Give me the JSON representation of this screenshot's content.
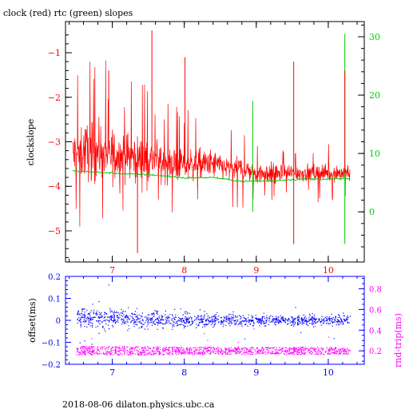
{
  "header": {
    "title": "clock (red) rtc (green) slopes"
  },
  "footer": {
    "text": "2018-08-06 dilaton.physics.ubc.ca"
  },
  "colors": {
    "red": "#ff0000",
    "green": "#00cc00",
    "blue": "#0000ff",
    "magenta": "#ff00ff",
    "axis": "#000000"
  },
  "chart_data": [
    {
      "type": "line",
      "title": "clock (red) rtc (green) slopes",
      "xlabel": "",
      "ylabel": "clockslope",
      "y2label": "",
      "xlim": [
        6.35,
        10.5
      ],
      "ylim": [
        -5.7,
        -0.3
      ],
      "y2lim": [
        -8.6,
        32.6
      ],
      "xticks": [
        "7",
        "8",
        "9",
        "10"
      ],
      "yticks": [
        "-1",
        "-2",
        "-3",
        "-4",
        "-5"
      ],
      "y2ticks": [
        "30",
        "20",
        "10",
        "0"
      ],
      "grid": false,
      "series": [
        {
          "name": "clock",
          "color": "#ff0000",
          "axis": "left",
          "x": [
            6.45,
            6.6,
            6.8,
            7.0,
            7.2,
            7.4,
            7.6,
            7.8,
            8.0,
            8.2,
            8.4,
            8.6,
            8.8,
            9.0,
            9.2,
            9.4,
            9.6,
            9.8,
            10.0,
            10.2,
            10.3
          ],
          "y": [
            -3.3,
            -3.2,
            -3.2,
            -3.3,
            -3.3,
            -3.4,
            -3.4,
            -3.5,
            -3.5,
            -3.5,
            -3.5,
            -3.6,
            -3.6,
            -3.7,
            -3.7,
            -3.7,
            -3.7,
            -3.7,
            -3.7,
            -3.7,
            -3.7
          ],
          "spread": [
            0.9,
            1.0,
            1.0,
            0.9,
            0.8,
            0.8,
            0.7,
            0.6,
            0.6,
            0.5,
            0.5,
            0.4,
            0.4,
            0.4,
            0.35,
            0.35,
            0.3,
            0.3,
            0.3,
            0.3,
            0.3
          ]
        },
        {
          "name": "rtc",
          "color": "#00cc00",
          "axis": "right",
          "x": [
            6.45,
            6.8,
            7.2,
            7.6,
            8.0,
            8.4,
            8.8,
            9.2,
            9.6,
            10.0,
            10.3
          ],
          "y": [
            7.0,
            6.8,
            6.5,
            6.3,
            5.8,
            5.9,
            5.2,
            5.3,
            5.6,
            5.6,
            5.7
          ]
        }
      ],
      "spikes": [
        {
          "x": 7.55,
          "y": -0.5
        },
        {
          "x": 7.35,
          "y": -5.5
        },
        {
          "x": 8.01,
          "y": -1.1
        },
        {
          "x": 9.52,
          "y": -1.2
        },
        {
          "x": 9.52,
          "y": -5.3
        },
        {
          "x": 10.23,
          "y": -1.4
        },
        {
          "x": 6.95,
          "y": -1.4
        }
      ],
      "green_spikes": [
        {
          "x": 8.95,
          "y": 19.0
        },
        {
          "x": 8.95,
          "y": 0.0
        },
        {
          "x": 10.23,
          "y": 30.5
        },
        {
          "x": 10.23,
          "y": -5.5
        }
      ]
    },
    {
      "type": "scatter",
      "title": "",
      "xlabel": "",
      "ylabel": "offset(ms)",
      "y2label": "rnd-trip(ms)",
      "xlim": [
        6.35,
        10.5
      ],
      "ylim": [
        -0.2,
        0.2
      ],
      "y2lim": [
        0.07,
        0.92
      ],
      "xticks": [
        "7",
        "8",
        "9",
        "10"
      ],
      "yticks": [
        "0.2",
        "0.1",
        "0",
        "-0.1",
        "-0.2"
      ],
      "y2ticks": [
        "0.8",
        "0.6",
        "0.4",
        "0.2"
      ],
      "grid": false,
      "series": [
        {
          "name": "offset",
          "color": "#0000ff",
          "axis": "left",
          "x": [
            6.5,
            7.0,
            7.5,
            8.0,
            8.5,
            9.0,
            9.5,
            10.0,
            10.3
          ],
          "y": [
            0.01,
            0.01,
            0.005,
            0.0,
            0.0,
            0.0,
            0.0,
            0.0,
            0.0
          ],
          "spread": [
            0.06,
            0.055,
            0.05,
            0.04,
            0.035,
            0.03,
            0.03,
            0.03,
            0.03
          ]
        },
        {
          "name": "rnd-trip",
          "color": "#ff00ff",
          "axis": "right",
          "x": [
            6.5,
            7.0,
            7.5,
            8.0,
            8.5,
            9.0,
            9.5,
            10.0,
            10.3
          ],
          "y": [
            0.2,
            0.2,
            0.2,
            0.2,
            0.2,
            0.2,
            0.2,
            0.2,
            0.2
          ],
          "spread": [
            0.06,
            0.06,
            0.06,
            0.05,
            0.05,
            0.05,
            0.05,
            0.05,
            0.05
          ]
        }
      ]
    }
  ]
}
